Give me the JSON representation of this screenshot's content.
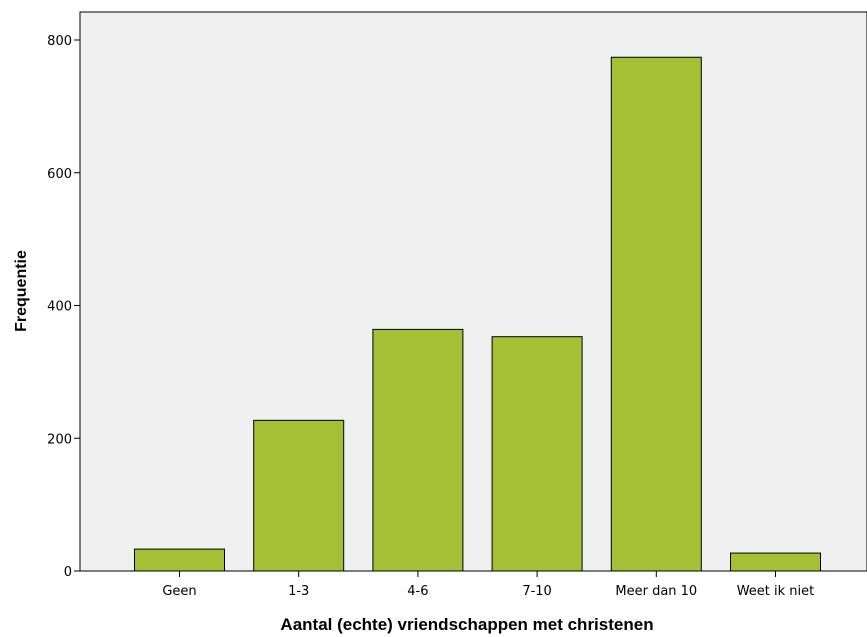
{
  "chart_data": {
    "type": "bar",
    "title": "",
    "xlabel": "Aantal (echte) vriendschappen met christenen",
    "ylabel": "Frequentie",
    "categories": [
      "Geen",
      "1-3",
      "4-6",
      "7-10",
      "Meer dan 10",
      "Weet ik niet"
    ],
    "values": [
      33,
      227,
      364,
      353,
      774,
      27
    ],
    "ylim": [
      0,
      860
    ],
    "yticks": [
      0,
      200,
      400,
      600,
      800
    ],
    "grid": false,
    "legend": "none"
  },
  "colors": {
    "bar_fill": "#a5c034",
    "bar_stroke": "#000000",
    "plot_background": "#f0f0f0",
    "axis": "#000000"
  }
}
